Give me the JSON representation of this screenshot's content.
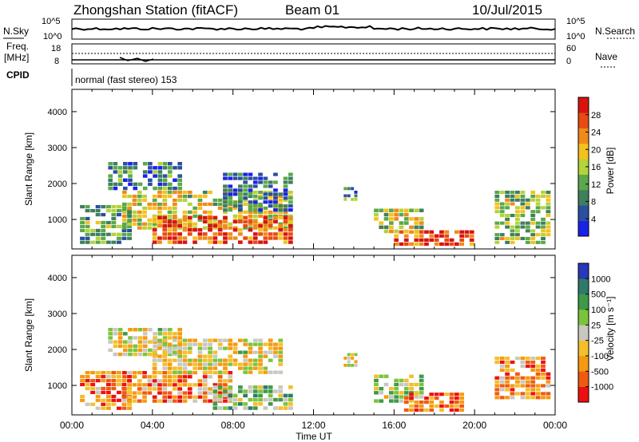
{
  "header": {
    "title": "Zhongshan Station (fitACF)",
    "beam": "Beam 01",
    "date": "10/Jul/2015"
  },
  "top_panels": {
    "nsky_label": "N.Sky",
    "nsky_ticks": [
      "10^5",
      "10^0"
    ],
    "nsearch_label": "N.Search",
    "nsearch_ticks": [
      "10^5",
      "10^0"
    ],
    "freq_label": "Freq.",
    "freq_unit": "[MHz]",
    "freq_ticks": [
      "18",
      "8"
    ],
    "nave_label": "Nave",
    "nave_ticks": [
      "60",
      "0"
    ],
    "cpid_label": "CPID",
    "cpid_text": "normal (fast stereo) 153"
  },
  "colors": {
    "power": [
      "#1a22e8",
      "#2a4fa0",
      "#3e7f5e",
      "#5aa84a",
      "#b5d33a",
      "#f4c21e",
      "#f08a1a",
      "#e84a12",
      "#d8140e"
    ],
    "velocity": [
      "#ee1010",
      "#f05a10",
      "#f59a10",
      "#f4bf2a",
      "#c8c8c0",
      "#7bc43a",
      "#3f9a48",
      "#2e7a6a",
      "#2838b8"
    ]
  },
  "chart_data": [
    {
      "type": "heatmap",
      "title": "Power",
      "ylabel": "Slant Range [km]",
      "xlabel": "Time UT",
      "x_ticks": [
        "00:00",
        "04:00",
        "08:00",
        "12:00",
        "16:00",
        "20:00",
        "00:00"
      ],
      "x_range_hours": [
        0,
        24
      ],
      "y_ticks": [
        1000,
        2000,
        3000,
        4000
      ],
      "y_range_km": [
        180,
        4620
      ],
      "colorbar_label": "Power [dB]",
      "colorbar_ticks": [
        "4",
        "8",
        "12",
        "16",
        "20",
        "24",
        "28"
      ],
      "colorbar_range": [
        0,
        30
      ],
      "regions": [
        {
          "t0": 0.4,
          "t1": 3.0,
          "r0": 300,
          "r1": 1400,
          "level": 0.35
        },
        {
          "t0": 1.8,
          "t1": 5.5,
          "r0": 1800,
          "r1": 2600,
          "level": 0.25
        },
        {
          "t0": 2.5,
          "t1": 11.0,
          "r0": 700,
          "r1": 1800,
          "level": 0.55
        },
        {
          "t0": 4.0,
          "t1": 11.0,
          "r0": 300,
          "r1": 1100,
          "level": 0.85
        },
        {
          "t0": 7.5,
          "t1": 11.0,
          "r0": 1200,
          "r1": 2300,
          "level": 0.2
        },
        {
          "t0": 13.5,
          "t1": 14.2,
          "r0": 1500,
          "r1": 1900,
          "level": 0.3
        },
        {
          "t0": 15.0,
          "t1": 17.5,
          "r0": 600,
          "r1": 1300,
          "level": 0.5
        },
        {
          "t0": 16.0,
          "t1": 20.0,
          "r0": 250,
          "r1": 700,
          "level": 0.85
        },
        {
          "t0": 21.0,
          "t1": 23.8,
          "r0": 300,
          "r1": 1800,
          "level": 0.45
        }
      ]
    },
    {
      "type": "heatmap",
      "title": "Velocity",
      "ylabel": "Slant Range [km]",
      "xlabel": "Time UT",
      "x_ticks": [
        "00:00",
        "04:00",
        "08:00",
        "12:00",
        "16:00",
        "20:00",
        "00:00"
      ],
      "x_range_hours": [
        0,
        24
      ],
      "y_ticks": [
        1000,
        2000,
        3000,
        4000
      ],
      "y_range_km": [
        180,
        4620
      ],
      "colorbar_label": "Velocity [m s⁻¹]",
      "colorbar_ticks": [
        "-1000",
        "-500",
        "-100",
        "-25",
        "25",
        "100",
        "500",
        "1000"
      ],
      "regions": [
        {
          "t0": 0.4,
          "t1": 3.0,
          "r0": 300,
          "r1": 1400,
          "level": 0.25
        },
        {
          "t0": 1.8,
          "t1": 5.5,
          "r0": 1800,
          "r1": 2600,
          "level": 0.45
        },
        {
          "t0": 2.5,
          "t1": 8.0,
          "r0": 500,
          "r1": 1400,
          "level": 0.25
        },
        {
          "t0": 4.0,
          "t1": 10.5,
          "r0": 1300,
          "r1": 2300,
          "level": 0.45
        },
        {
          "t0": 7.0,
          "t1": 11.0,
          "r0": 300,
          "r1": 1000,
          "level": 0.6
        },
        {
          "t0": 13.5,
          "t1": 14.2,
          "r0": 1500,
          "r1": 1900,
          "level": 0.45
        },
        {
          "t0": 15.0,
          "t1": 17.5,
          "r0": 500,
          "r1": 1300,
          "level": 0.55
        },
        {
          "t0": 16.5,
          "t1": 19.5,
          "r0": 250,
          "r1": 800,
          "level": 0.2
        },
        {
          "t0": 21.0,
          "t1": 23.8,
          "r0": 600,
          "r1": 1800,
          "level": 0.3
        }
      ]
    }
  ]
}
